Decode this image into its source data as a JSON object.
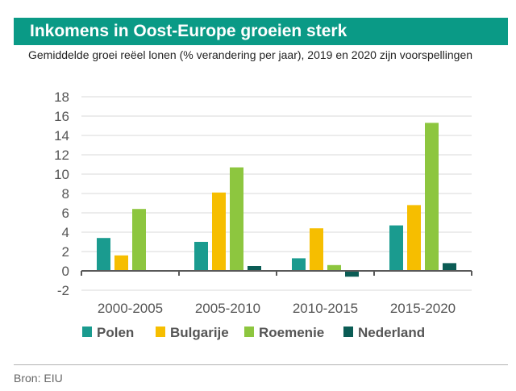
{
  "header": {
    "title": "Inkomens in Oost-Europe groeien sterk",
    "subtitle": "Gemiddelde groei reëel lonen (% verandering per jaar), 2019 en 2020 zijn voorspellingen"
  },
  "footer": {
    "source": "Bron: EIU"
  },
  "colors": {
    "title_bar": "#0a9a86",
    "Polen": "#1a9b8f",
    "Bulgarije": "#f6be00",
    "Roemenie": "#8dc63f",
    "Nederland": "#0b5c55"
  },
  "chart_data": {
    "type": "bar",
    "title": "Inkomens in Oost-Europe groeien sterk",
    "subtitle": "Gemiddelde groei reëel lonen (% verandering per jaar), 2019 en 2020 zijn voorspellingen",
    "categories": [
      "2000-2005",
      "2005-2010",
      "2010-2015",
      "2015-2020"
    ],
    "series": [
      {
        "name": "Polen",
        "values": [
          3.4,
          3.0,
          1.3,
          4.7
        ]
      },
      {
        "name": "Bulgarije",
        "values": [
          1.6,
          8.1,
          4.4,
          6.8
        ]
      },
      {
        "name": "Roemenie",
        "values": [
          6.4,
          10.7,
          0.6,
          15.3
        ]
      },
      {
        "name": "Nederland",
        "values": [
          0.0,
          0.5,
          -0.6,
          0.8
        ]
      }
    ],
    "yticks": [
      "-2",
      "0",
      "2",
      "4",
      "6",
      "8",
      "10",
      "12",
      "14",
      "16",
      "18"
    ],
    "ylim": [
      -2,
      18
    ],
    "grid": true,
    "legend": "bottom"
  }
}
